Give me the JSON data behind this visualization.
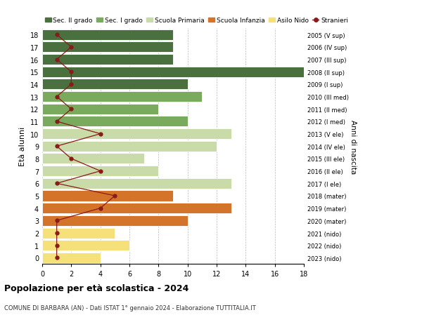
{
  "ages": [
    18,
    17,
    16,
    15,
    14,
    13,
    12,
    11,
    10,
    9,
    8,
    7,
    6,
    5,
    4,
    3,
    2,
    1,
    0
  ],
  "anni_nascita": [
    "2005 (V sup)",
    "2006 (IV sup)",
    "2007 (III sup)",
    "2008 (II sup)",
    "2009 (I sup)",
    "2010 (III med)",
    "2011 (II med)",
    "2012 (I med)",
    "2013 (V ele)",
    "2014 (IV ele)",
    "2015 (III ele)",
    "2016 (II ele)",
    "2017 (I ele)",
    "2018 (mater)",
    "2019 (mater)",
    "2020 (mater)",
    "2021 (nido)",
    "2022 (nido)",
    "2023 (nido)"
  ],
  "bar_values": [
    9,
    9,
    9,
    18,
    10,
    11,
    8,
    10,
    13,
    12,
    7,
    8,
    13,
    9,
    13,
    10,
    5,
    6,
    4
  ],
  "stranieri": [
    1,
    2,
    1,
    2,
    2,
    1,
    2,
    1,
    4,
    1,
    2,
    4,
    1,
    5,
    4,
    1,
    1,
    1,
    1
  ],
  "colors": {
    "sec2": "#4a7040",
    "sec1": "#7aaa5d",
    "primaria": "#c8dba8",
    "infanzia": "#d4732a",
    "nido": "#f5e07a",
    "stranieri": "#8b1a1a"
  },
  "title": "Popolazione per età scolastica - 2024",
  "subtitle": "COMUNE DI BARBARA (AN) - Dati ISTAT 1° gennaio 2024 - Elaborazione TUTTITALIA.IT",
  "ylabel": "Età alunni",
  "ylabel2": "Anni di nascita",
  "xlim": [
    0,
    18
  ],
  "ylim": [
    -0.5,
    18.5
  ],
  "background": "#ffffff",
  "legend_labels": [
    "Sec. II grado",
    "Sec. I grado",
    "Scuola Primaria",
    "Scuola Infanzia",
    "Asilo Nido",
    "Stranieri"
  ]
}
